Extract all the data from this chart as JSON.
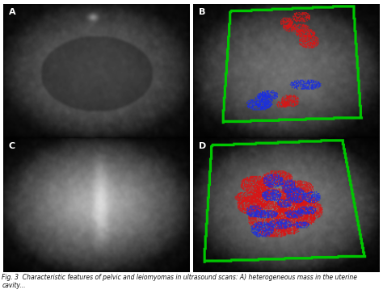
{
  "figsize": [
    4.74,
    3.69
  ],
  "dpi": 100,
  "bg_color": "#ffffff",
  "caption": "Fig. 3  Characteristic features of pelvic and leiomyomas in ultrasound scans: A) heterogeneous mass in the uterine cavity...",
  "caption_fontsize": 5.5,
  "panel_labels": [
    "A",
    "B",
    "C",
    "D"
  ],
  "panel_label_color": "#ffffff",
  "panel_label_fontsize": 8,
  "green_color": [
    0.0,
    0.78,
    0.0
  ],
  "red_color": [
    0.85,
    0.08,
    0.08
  ],
  "blue_color": [
    0.1,
    0.18,
    0.88
  ]
}
